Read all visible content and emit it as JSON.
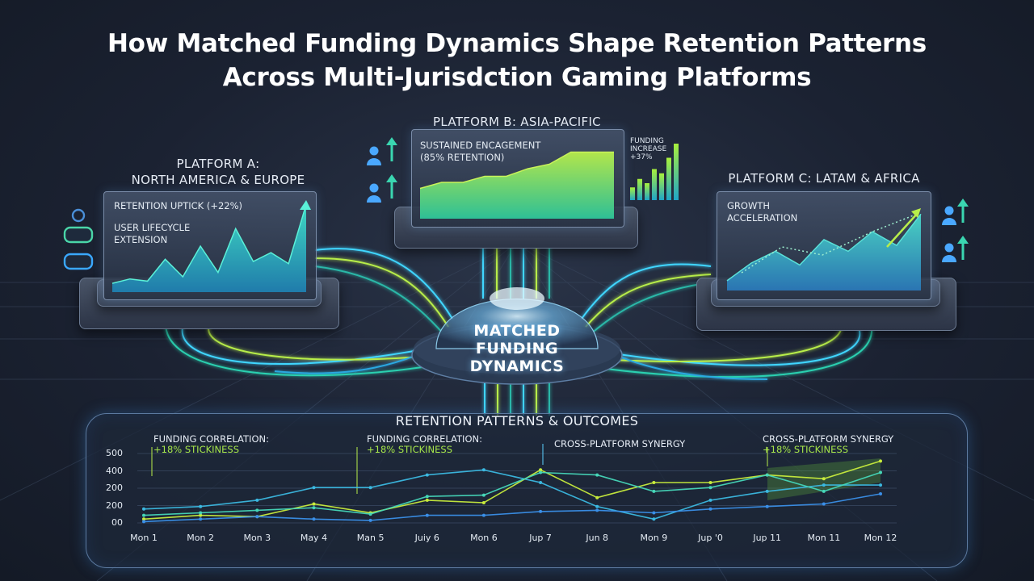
{
  "title": {
    "line1": "How Matched Funding Dynamics Shape Retention Patterns",
    "line2": "Across Multi-Jurisdction Gaming Platforms"
  },
  "center": {
    "line1": "MATCHED",
    "line2": "FUNDING",
    "line3": "DYNAMICS"
  },
  "platform_a": {
    "title_line1": "PLATFORM A:",
    "title_line2": "NORTH AMERICA & EUROPE",
    "label1": "RETENTION UPTICK (+22%)",
    "label2_line1": "USER LIFECYCLE",
    "label2_line2": "EXTENSION",
    "icons": [
      "user-gamepad-icon",
      "gamepad-icon"
    ]
  },
  "platform_b": {
    "title": "PLATFORM B: ASIA-PACIFIC",
    "label_line1": "SUSTAINED ENCAGEMENT",
    "label_line2": "(85% RETENTION)",
    "funding_line1": "FUNDING",
    "funding_line2": "INCREASE",
    "funding_line3": "+37%",
    "icons": [
      "user-growth-icon",
      "user-growth-icon"
    ]
  },
  "platform_c": {
    "title": "PLATFORM C: LATAM & AFRICA",
    "label_line1": "GROWTH",
    "label_line2": "ACCELERATION",
    "icons": [
      "user-growth-icon",
      "user-growth-icon"
    ]
  },
  "bottom": {
    "title": "RETENTION PATTERNS & OUTCOMES",
    "annotations": [
      {
        "line1": "FUNDING CORRELATION:",
        "line2": "+18% STICKINESS"
      },
      {
        "line1": "FUNDING CORRELATION:",
        "line2": "+18% STICKINESS"
      },
      {
        "line1": "CROSS-PLATFORM SYNERGY",
        "line2": ""
      },
      {
        "line1": "CROSS-PLATFORM SYNERGY",
        "line2": "+18% STICKINESS"
      }
    ]
  },
  "chart_data": [
    {
      "type": "area",
      "title": "Platform A",
      "values": [
        8,
        12,
        10,
        30,
        14,
        42,
        18,
        58,
        28,
        36,
        26,
        80
      ]
    },
    {
      "type": "area",
      "title": "Platform B",
      "values": [
        20,
        24,
        24,
        28,
        28,
        33,
        36,
        44,
        44,
        44
      ]
    },
    {
      "type": "bar",
      "title": "Platform B funding",
      "values": [
        18,
        30,
        24,
        44,
        38,
        60,
        80
      ]
    },
    {
      "type": "area",
      "title": "Platform C",
      "values": [
        10,
        28,
        40,
        26,
        52,
        40,
        60,
        46,
        78
      ]
    },
    {
      "type": "line",
      "title": "RETENTION PATTERNS & OUTCOMES",
      "categories": [
        "Mon 1",
        "Mon 2",
        "Mon 3",
        "May 4",
        "Man 5",
        "Juiy 6",
        "Mon 6",
        "Jup 7",
        "Jun 8",
        "Mon 9",
        "Jup '0",
        "Jup 11",
        "Mon 11",
        "Mon 12"
      ],
      "yticks": [
        "500",
        "400",
        "200",
        "200",
        "00"
      ],
      "ylim": [
        0,
        550
      ],
      "series": [
        {
          "color": "#3bb8e0",
          "values": [
            110,
            130,
            180,
            280,
            280,
            380,
            420,
            320,
            130,
            30,
            180,
            250,
            300,
            300
          ]
        },
        {
          "color": "#c8ec3c",
          "values": [
            30,
            60,
            50,
            150,
            80,
            180,
            160,
            420,
            200,
            320,
            320,
            380,
            350,
            490
          ]
        },
        {
          "color": "#46d6b8",
          "values": [
            60,
            80,
            100,
            120,
            70,
            210,
            220,
            400,
            380,
            250,
            280,
            380,
            250,
            400
          ]
        },
        {
          "color": "#3a8fe8",
          "values": [
            10,
            30,
            50,
            30,
            20,
            60,
            60,
            90,
            100,
            80,
            110,
            130,
            150,
            230
          ]
        }
      ]
    }
  ]
}
